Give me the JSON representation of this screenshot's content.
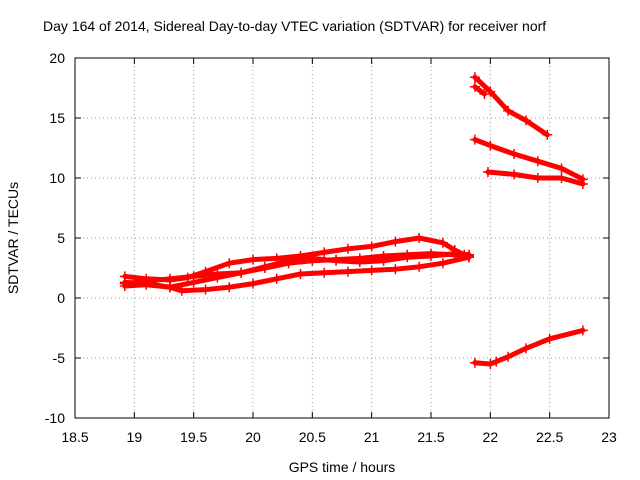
{
  "chart_data": {
    "type": "line",
    "title": "Day 164 of 2014, Sidereal Day-to-day VTEC variation (SDTVAR) for receiver norf",
    "xlabel": "GPS time / hours",
    "ylabel": "SDTVAR / TECUs",
    "xlim": [
      18.5,
      23
    ],
    "ylim": [
      -10,
      20
    ],
    "xticks": [
      18.5,
      19,
      19.5,
      20,
      20.5,
      21,
      21.5,
      22,
      22.5,
      23
    ],
    "xtick_labels": [
      "18.5",
      "19",
      "19.5",
      "20",
      "20.5",
      "21",
      "21.5",
      "22",
      "22.5",
      "23"
    ],
    "yticks": [
      -10,
      -5,
      0,
      5,
      10,
      15,
      20
    ],
    "ytick_labels": [
      "-10",
      "-5",
      "0",
      "5",
      "10",
      "15",
      "20"
    ],
    "grid": true,
    "series_color": "#ff0000",
    "series": [
      {
        "name": "trace-1",
        "x": [
          18.92,
          19.1,
          19.3,
          19.45,
          19.6,
          19.8,
          20.0,
          20.2,
          20.4,
          20.6,
          20.8,
          21.0,
          21.2,
          21.4,
          21.6,
          21.7,
          21.78,
          21.82
        ],
        "y": [
          1.8,
          1.6,
          1.5,
          1.7,
          2.2,
          2.9,
          3.2,
          3.3,
          3.5,
          3.8,
          4.1,
          4.3,
          4.7,
          5.0,
          4.6,
          4.0,
          3.6,
          3.4
        ]
      },
      {
        "name": "trace-2",
        "x": [
          18.92,
          19.1,
          19.3,
          19.5,
          19.7,
          19.9,
          20.1,
          20.3,
          20.5,
          20.7,
          20.9,
          21.1,
          21.3,
          21.5,
          21.7,
          21.82
        ],
        "y": [
          1.2,
          1.4,
          1.6,
          1.8,
          2.0,
          2.1,
          2.5,
          2.9,
          3.1,
          3.2,
          3.3,
          3.5,
          3.6,
          3.7,
          3.6,
          3.5
        ]
      },
      {
        "name": "trace-3",
        "x": [
          18.92,
          19.1,
          19.3,
          19.5,
          19.7,
          19.9,
          20.1,
          20.3,
          20.5,
          20.7,
          20.9,
          21.1,
          21.3,
          21.5,
          21.7,
          21.82
        ],
        "y": [
          1.0,
          1.1,
          0.9,
          1.3,
          1.7,
          2.1,
          2.6,
          3.1,
          3.3,
          3.1,
          3.0,
          3.1,
          3.4,
          3.5,
          3.7,
          3.6
        ]
      },
      {
        "name": "trace-4",
        "x": [
          18.92,
          19.1,
          19.3,
          19.4,
          19.6,
          19.8,
          20.0,
          20.2,
          20.4,
          20.6,
          20.8,
          21.0,
          21.2,
          21.4,
          21.6,
          21.82
        ],
        "y": [
          1.3,
          1.2,
          0.9,
          0.6,
          0.7,
          0.9,
          1.2,
          1.6,
          2.0,
          2.1,
          2.2,
          2.3,
          2.4,
          2.6,
          2.9,
          3.4
        ]
      },
      {
        "name": "trace-5",
        "x": [
          21.87,
          22.0,
          22.15,
          22.3,
          22.48
        ],
        "y": [
          18.4,
          17.2,
          15.6,
          14.8,
          13.6
        ]
      },
      {
        "name": "trace-6",
        "x": [
          21.87,
          21.95
        ],
        "y": [
          17.6,
          17.0
        ]
      },
      {
        "name": "trace-7",
        "x": [
          21.87,
          22.0,
          22.2,
          22.4,
          22.6,
          22.78
        ],
        "y": [
          13.2,
          12.7,
          12.0,
          11.4,
          10.8,
          9.9
        ]
      },
      {
        "name": "trace-8",
        "x": [
          21.98,
          22.2,
          22.4,
          22.6,
          22.78
        ],
        "y": [
          10.5,
          10.3,
          10.0,
          10.0,
          9.5
        ]
      },
      {
        "name": "trace-9",
        "x": [
          21.87,
          22.0,
          22.05,
          22.15,
          22.3,
          22.5,
          22.78
        ],
        "y": [
          -5.4,
          -5.5,
          -5.3,
          -4.9,
          -4.2,
          -3.4,
          -2.7
        ]
      }
    ]
  }
}
